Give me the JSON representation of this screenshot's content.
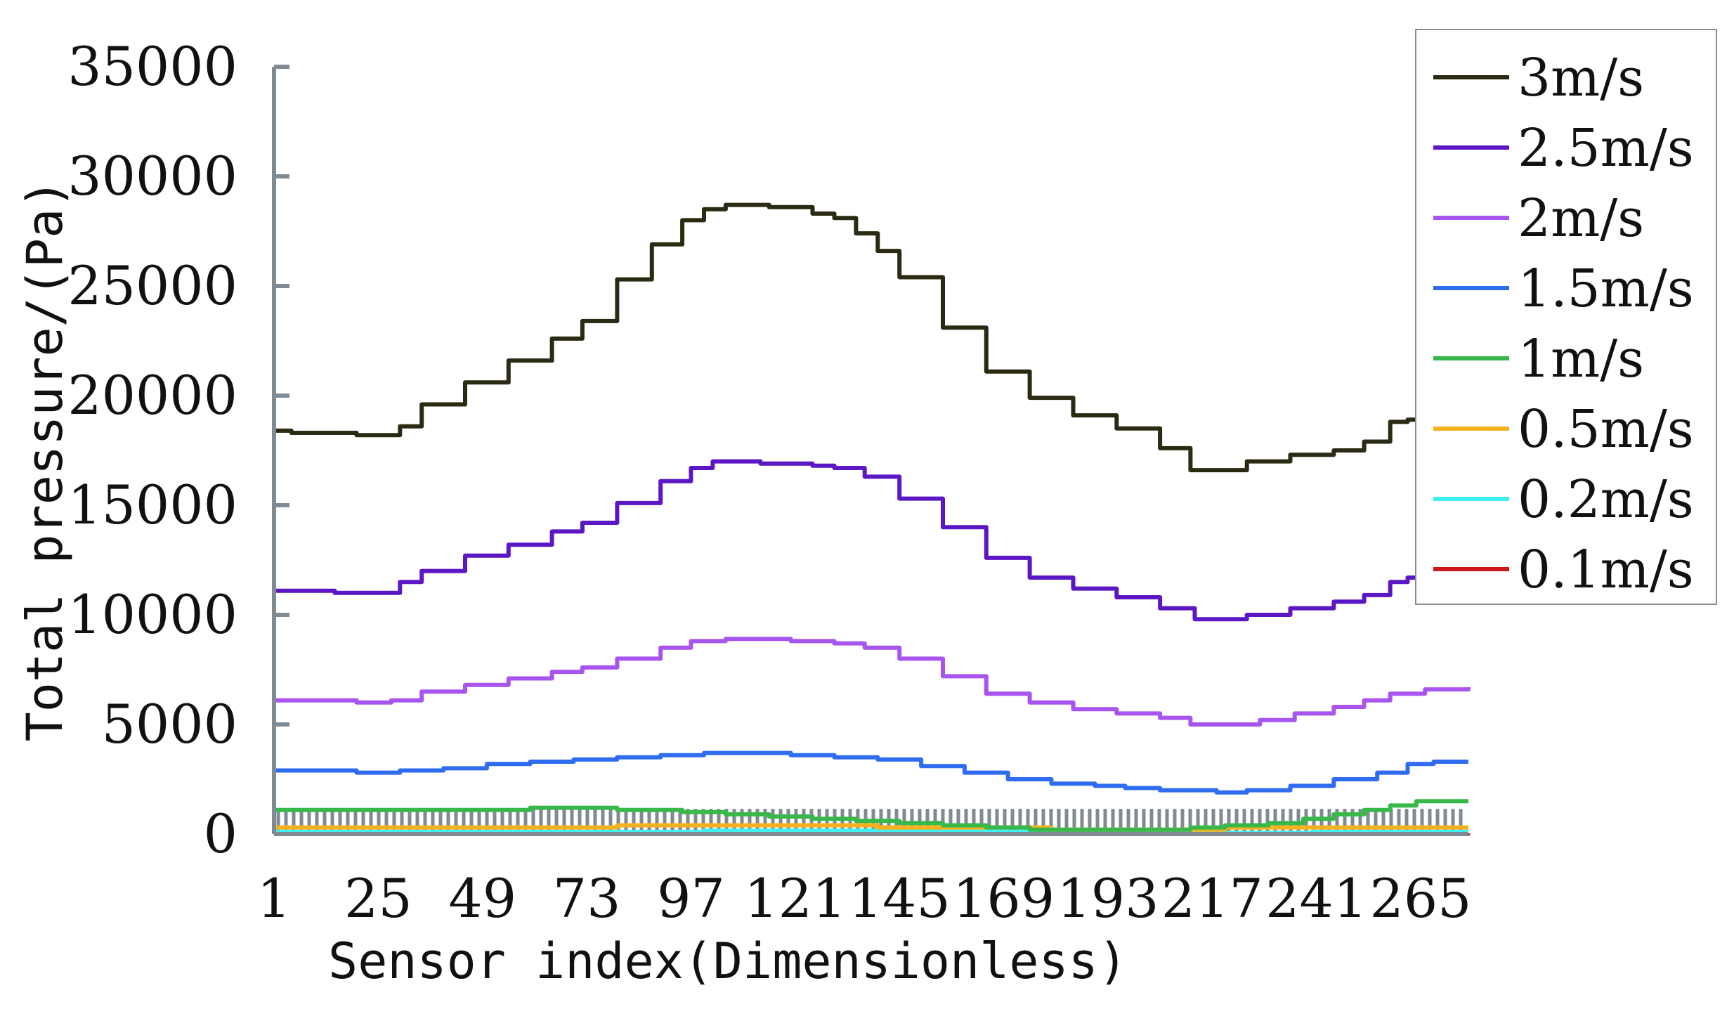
{
  "chart_data": {
    "type": "line",
    "xlabel": "Sensor index(Dimensionless)",
    "ylabel": "Total pressure/(Pa)",
    "xlim": [
      1,
      276
    ],
    "ylim": [
      0,
      35000
    ],
    "x_ticks": [
      "1",
      "25",
      "49",
      "73",
      "97",
      "121",
      "145",
      "169",
      "193",
      "217",
      "241",
      "265"
    ],
    "y_ticks": [
      "0",
      "5000",
      "10000",
      "15000",
      "20000",
      "25000",
      "30000",
      "35000"
    ],
    "grid": false,
    "legend_position": "top-right",
    "series": [
      {
        "name": "3m/s",
        "color": "#2b2a12",
        "points": [
          [
            1,
            18400
          ],
          [
            5,
            18300
          ],
          [
            15,
            18300
          ],
          [
            20,
            18200
          ],
          [
            25,
            18200
          ],
          [
            30,
            18600
          ],
          [
            35,
            19600
          ],
          [
            45,
            20600
          ],
          [
            55,
            21600
          ],
          [
            65,
            22600
          ],
          [
            72,
            23400
          ],
          [
            80,
            25300
          ],
          [
            88,
            26900
          ],
          [
            95,
            28000
          ],
          [
            100,
            28500
          ],
          [
            105,
            28700
          ],
          [
            110,
            28700
          ],
          [
            115,
            28600
          ],
          [
            120,
            28600
          ],
          [
            125,
            28300
          ],
          [
            130,
            28100
          ],
          [
            135,
            27400
          ],
          [
            140,
            26600
          ],
          [
            145,
            25400
          ],
          [
            155,
            23100
          ],
          [
            165,
            21100
          ],
          [
            175,
            19900
          ],
          [
            185,
            19100
          ],
          [
            195,
            18500
          ],
          [
            205,
            17600
          ],
          [
            212,
            16600
          ],
          [
            218,
            16600
          ],
          [
            225,
            17000
          ],
          [
            235,
            17300
          ],
          [
            245,
            17500
          ],
          [
            252,
            17900
          ],
          [
            258,
            18800
          ],
          [
            262,
            18900
          ],
          [
            264,
            18900
          ]
        ]
      },
      {
        "name": "2.5m/s",
        "color": "#5b17c4",
        "points": [
          [
            1,
            11100
          ],
          [
            10,
            11100
          ],
          [
            15,
            11000
          ],
          [
            24,
            11000
          ],
          [
            30,
            11500
          ],
          [
            35,
            12000
          ],
          [
            45,
            12700
          ],
          [
            55,
            13200
          ],
          [
            65,
            13800
          ],
          [
            72,
            14200
          ],
          [
            80,
            15100
          ],
          [
            90,
            16100
          ],
          [
            97,
            16700
          ],
          [
            102,
            17000
          ],
          [
            108,
            17000
          ],
          [
            113,
            16900
          ],
          [
            120,
            16900
          ],
          [
            125,
            16800
          ],
          [
            130,
            16700
          ],
          [
            137,
            16300
          ],
          [
            145,
            15300
          ],
          [
            155,
            14000
          ],
          [
            165,
            12600
          ],
          [
            175,
            11700
          ],
          [
            185,
            11200
          ],
          [
            195,
            10800
          ],
          [
            205,
            10300
          ],
          [
            213,
            9800
          ],
          [
            218,
            9800
          ],
          [
            225,
            10000
          ],
          [
            235,
            10300
          ],
          [
            245,
            10600
          ],
          [
            252,
            10900
          ],
          [
            258,
            11500
          ],
          [
            262,
            11700
          ],
          [
            264,
            11700
          ]
        ]
      },
      {
        "name": "2m/s",
        "color": "#a855f0",
        "points": [
          [
            1,
            6100
          ],
          [
            12,
            6100
          ],
          [
            20,
            6000
          ],
          [
            28,
            6100
          ],
          [
            35,
            6500
          ],
          [
            45,
            6800
          ],
          [
            55,
            7100
          ],
          [
            65,
            7400
          ],
          [
            72,
            7600
          ],
          [
            80,
            8000
          ],
          [
            90,
            8500
          ],
          [
            97,
            8800
          ],
          [
            105,
            8900
          ],
          [
            113,
            8900
          ],
          [
            120,
            8800
          ],
          [
            130,
            8700
          ],
          [
            137,
            8500
          ],
          [
            145,
            8000
          ],
          [
            155,
            7200
          ],
          [
            165,
            6400
          ],
          [
            175,
            6000
          ],
          [
            185,
            5700
          ],
          [
            195,
            5500
          ],
          [
            205,
            5300
          ],
          [
            212,
            5000
          ],
          [
            220,
            5000
          ],
          [
            228,
            5200
          ],
          [
            236,
            5500
          ],
          [
            245,
            5800
          ],
          [
            252,
            6100
          ],
          [
            258,
            6400
          ],
          [
            266,
            6600
          ],
          [
            276,
            6700
          ]
        ]
      },
      {
        "name": "1.5m/s",
        "color": "#2f6cf0",
        "points": [
          [
            1,
            2900
          ],
          [
            12,
            2900
          ],
          [
            20,
            2800
          ],
          [
            30,
            2900
          ],
          [
            40,
            3000
          ],
          [
            50,
            3200
          ],
          [
            60,
            3300
          ],
          [
            70,
            3400
          ],
          [
            80,
            3500
          ],
          [
            90,
            3600
          ],
          [
            100,
            3700
          ],
          [
            110,
            3700
          ],
          [
            120,
            3600
          ],
          [
            130,
            3500
          ],
          [
            140,
            3400
          ],
          [
            150,
            3100
          ],
          [
            160,
            2800
          ],
          [
            170,
            2500
          ],
          [
            180,
            2300
          ],
          [
            190,
            2200
          ],
          [
            197,
            2100
          ],
          [
            205,
            2000
          ],
          [
            213,
            2000
          ],
          [
            218,
            1900
          ],
          [
            225,
            2000
          ],
          [
            235,
            2200
          ],
          [
            245,
            2500
          ],
          [
            255,
            2800
          ],
          [
            262,
            3200
          ],
          [
            268,
            3300
          ],
          [
            276,
            3300
          ]
        ]
      },
      {
        "name": "1m/s",
        "color": "#38b84a",
        "points": [
          [
            1,
            1100
          ],
          [
            30,
            1100
          ],
          [
            55,
            1100
          ],
          [
            60,
            1200
          ],
          [
            70,
            1200
          ],
          [
            80,
            1100
          ],
          [
            95,
            1000
          ],
          [
            105,
            900
          ],
          [
            115,
            800
          ],
          [
            125,
            700
          ],
          [
            135,
            600
          ],
          [
            145,
            500
          ],
          [
            155,
            400
          ],
          [
            165,
            300
          ],
          [
            175,
            200
          ],
          [
            185,
            200
          ],
          [
            195,
            200
          ],
          [
            205,
            200
          ],
          [
            212,
            300
          ],
          [
            220,
            400
          ],
          [
            230,
            500
          ],
          [
            238,
            700
          ],
          [
            245,
            900
          ],
          [
            252,
            1100
          ],
          [
            258,
            1300
          ],
          [
            264,
            1500
          ],
          [
            276,
            1500
          ]
        ]
      },
      {
        "name": "0.5m/s",
        "color": "#f5b21d",
        "points": [
          [
            1,
            300
          ],
          [
            40,
            300
          ],
          [
            60,
            300
          ],
          [
            80,
            400
          ],
          [
            100,
            400
          ],
          [
            120,
            400
          ],
          [
            140,
            300
          ],
          [
            160,
            300
          ],
          [
            180,
            200
          ],
          [
            200,
            200
          ],
          [
            220,
            300
          ],
          [
            240,
            300
          ],
          [
            260,
            300
          ],
          [
            276,
            300
          ]
        ]
      },
      {
        "name": "0.2m/s",
        "color": "#3ff0f0",
        "points": [
          [
            1,
            100
          ],
          [
            50,
            100
          ],
          [
            100,
            150
          ],
          [
            150,
            150
          ],
          [
            200,
            50
          ],
          [
            240,
            100
          ],
          [
            276,
            100
          ]
        ]
      },
      {
        "name": "0.1m/s",
        "color": "#cc1a1a",
        "points": [
          [
            1,
            30
          ],
          [
            100,
            40
          ],
          [
            200,
            20
          ],
          [
            276,
            30
          ]
        ]
      }
    ]
  }
}
